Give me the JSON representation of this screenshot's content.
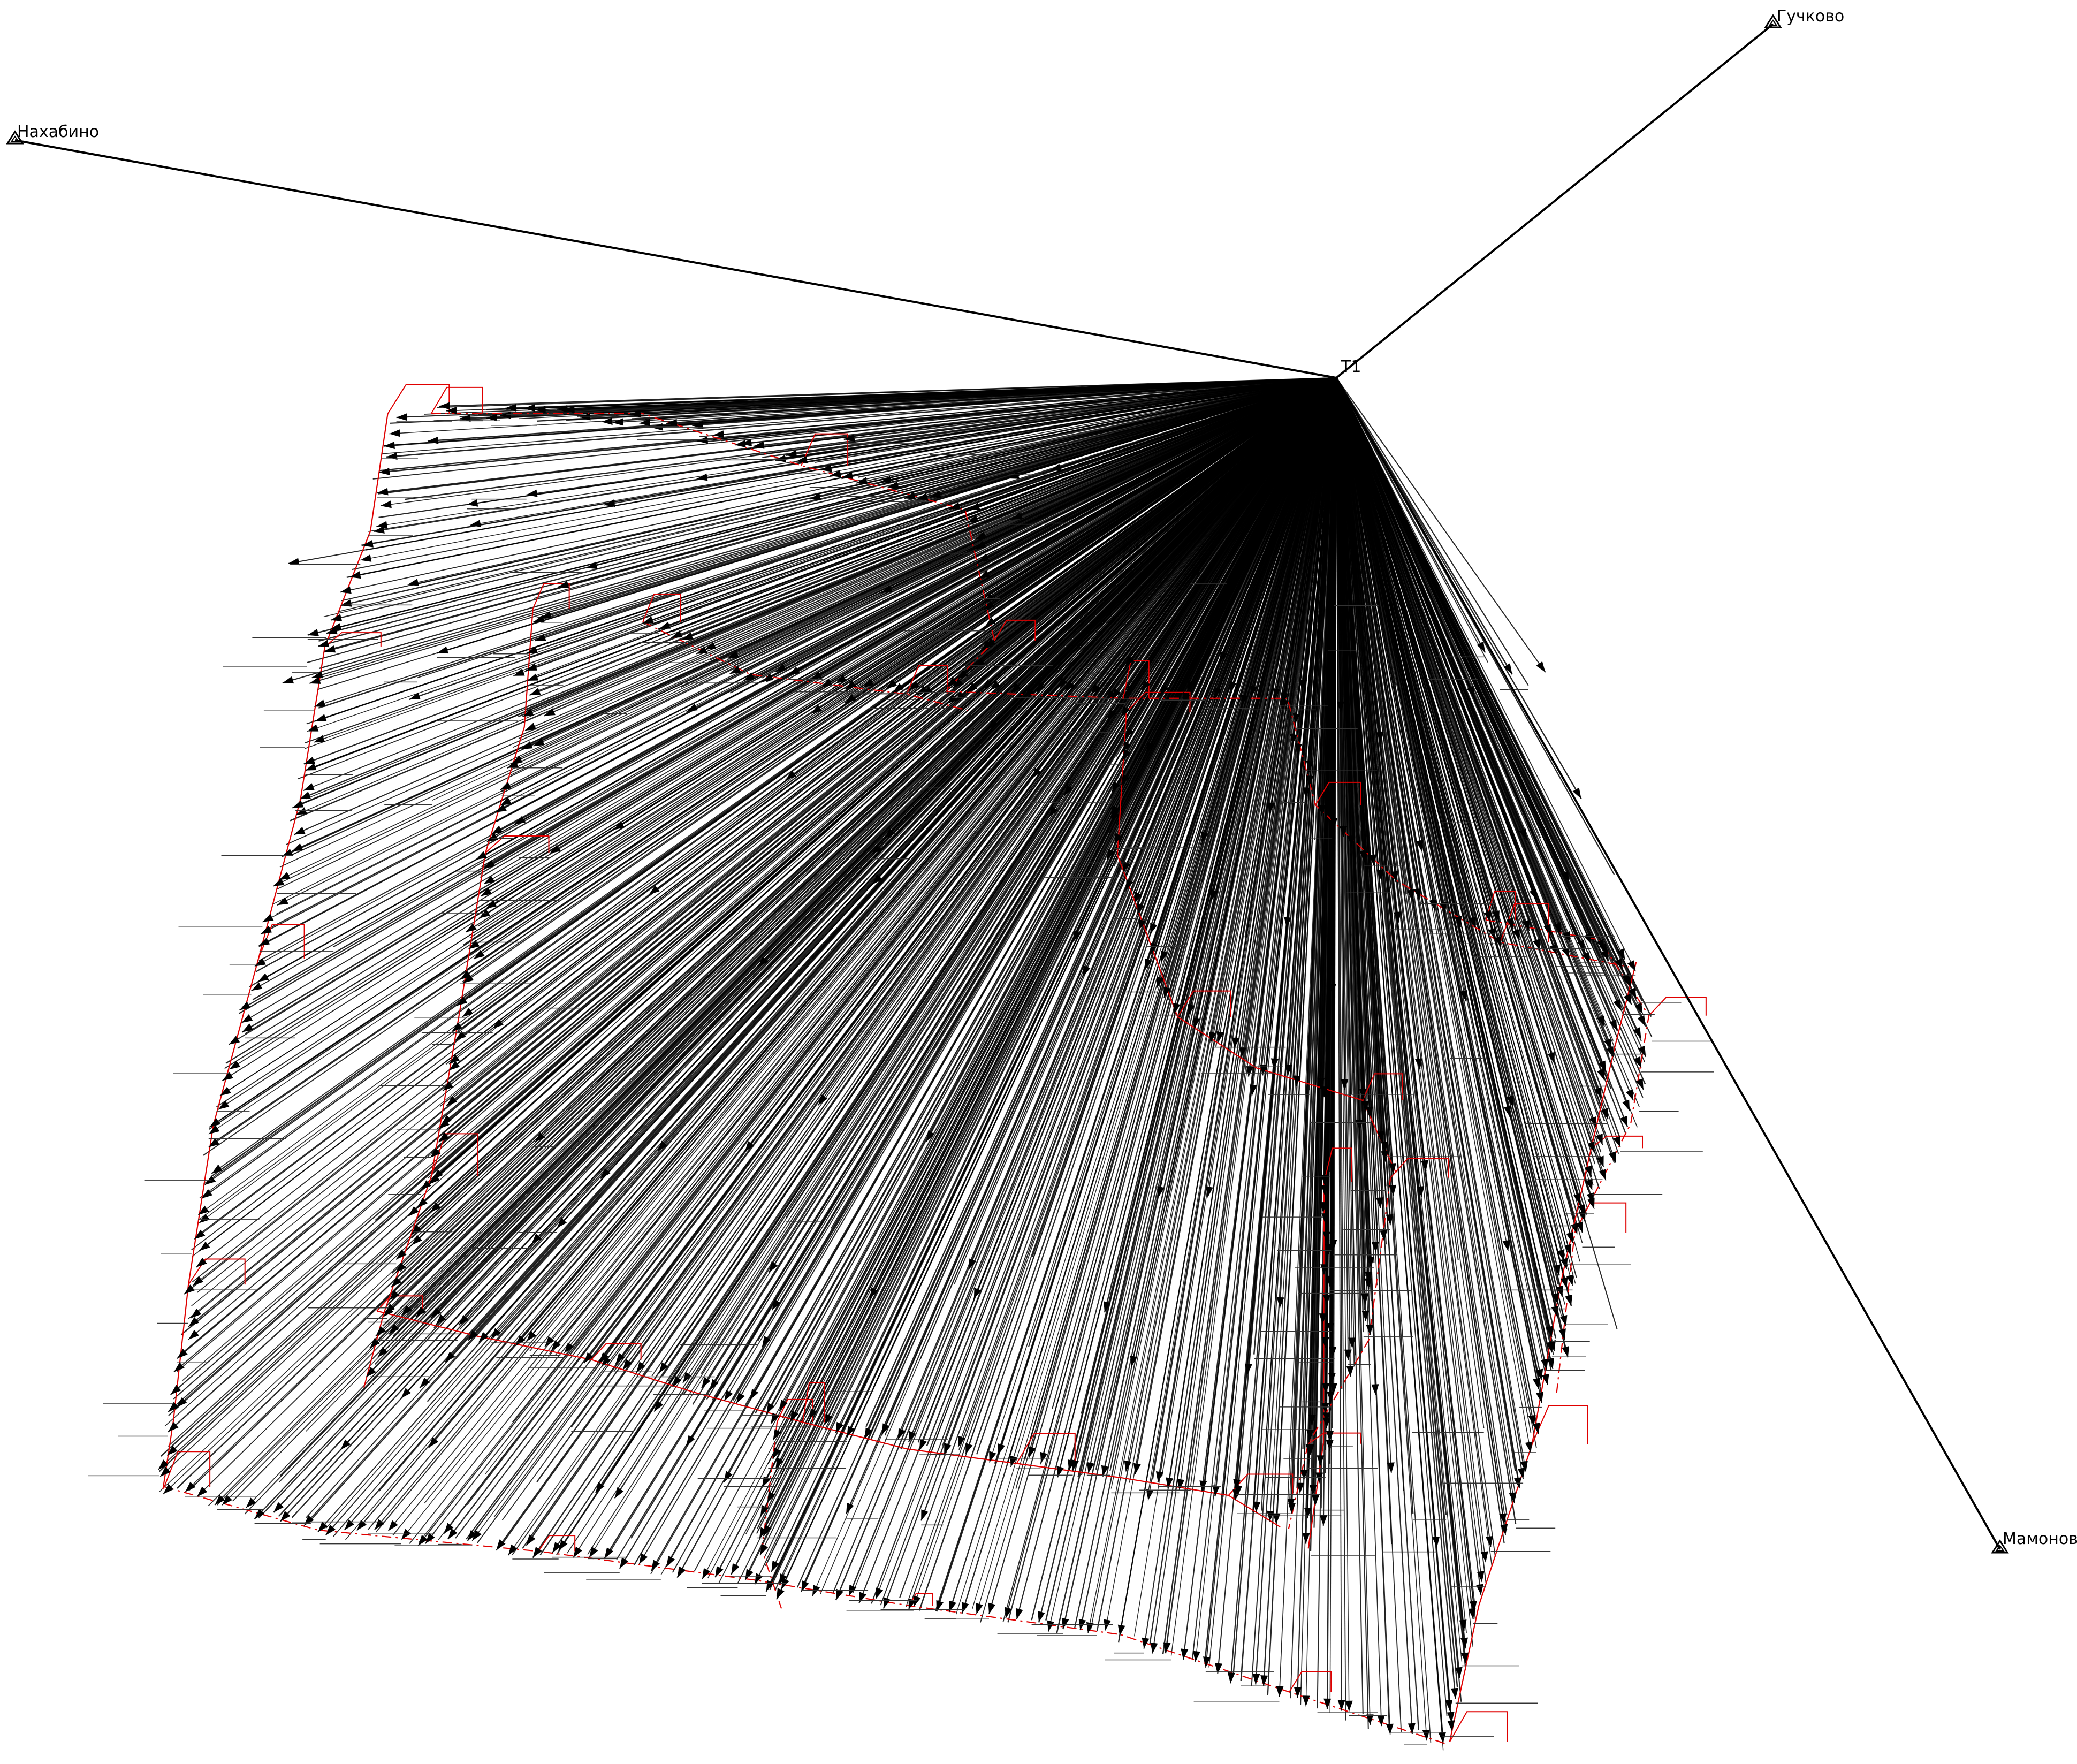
{
  "diagram": {
    "station_label": "T1",
    "reference_points": [
      {
        "id": "nakhabino",
        "label": "Нахабино"
      },
      {
        "id": "guchkovo",
        "label": "Гучково"
      },
      {
        "id": "mamonovo",
        "label": "Мамоново"
      }
    ],
    "colors": {
      "ray_line": "#000000",
      "traverse_line": "#e00000",
      "background": "#ffffff"
    },
    "marker_icon": "triangle-benchmark-icon",
    "arrow_icon": "arrowhead-icon"
  }
}
